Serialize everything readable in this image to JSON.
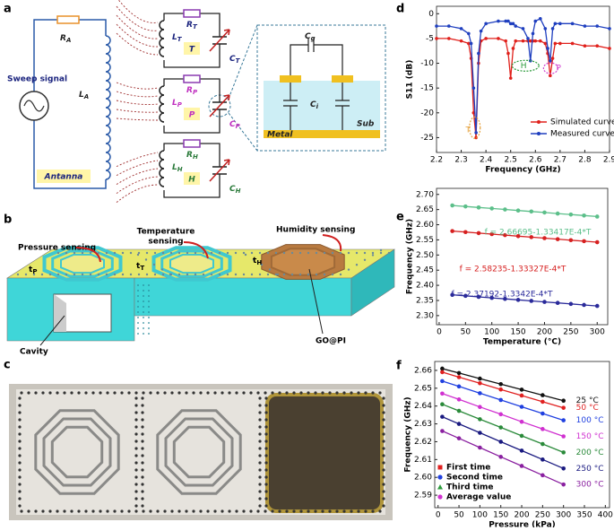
{
  "panel_labels": [
    "a",
    "b",
    "c",
    "d",
    "e",
    "f"
  ],
  "diagram_a": {
    "sweep_signal": "Sweep signal",
    "antenna": "Antanna",
    "r_a": [
      "R",
      "A"
    ],
    "l_a": [
      "L",
      "A"
    ],
    "r_t": [
      "R",
      "T"
    ],
    "l_t": [
      "L",
      "T"
    ],
    "t": "T",
    "c_t": [
      "C",
      "T"
    ],
    "r_p": [
      "R",
      "P"
    ],
    "l_p": [
      "L",
      "P"
    ],
    "p": "P",
    "c_p": [
      "C",
      "P"
    ],
    "r_h": [
      "R",
      "H"
    ],
    "l_h": [
      "L",
      "H"
    ],
    "h": "H",
    "c_h": [
      "C",
      "H"
    ],
    "c_g": [
      "C",
      "g"
    ],
    "c_i": [
      "C",
      "i"
    ],
    "sub": "Sub",
    "metal": "Metal"
  },
  "diagram_b": {
    "pressure_sensing": "Pressure sensing",
    "temperature_sensing": [
      "Temperature",
      "sensing"
    ],
    "humidity_sensing": "Humidity sensing",
    "cavity": "Cavity",
    "go_pi": "GO@PI",
    "t_p": [
      "t",
      "P"
    ],
    "t_t": [
      "t",
      "T"
    ],
    "t_h": [
      "t",
      "H"
    ]
  },
  "chart_data": [
    {
      "type": "line",
      "x_label": "Frequency (GHz)",
      "y_label": "S11 (dB)",
      "x": [
        2.2,
        2.25,
        2.3,
        2.33,
        2.34,
        2.35,
        2.36,
        2.37,
        2.38,
        2.4,
        2.45,
        2.48,
        2.49,
        2.5,
        2.51,
        2.52,
        2.55,
        2.57,
        2.58,
        2.59,
        2.6,
        2.62,
        2.64,
        2.65,
        2.66,
        2.67,
        2.68,
        2.7,
        2.75,
        2.8,
        2.85,
        2.9
      ],
      "series": [
        {
          "name": "Simulated curve",
          "color": "#e0201b",
          "values": [
            -5,
            -5,
            -5.5,
            -6,
            -9,
            -20,
            -25,
            -10,
            -5.5,
            -5,
            -5,
            -5.5,
            -8,
            -13,
            -7,
            -5.5,
            -5.5,
            -5.5,
            -5.5,
            -5.5,
            -5.5,
            -5.5,
            -6,
            -8,
            -12.5,
            -9,
            -6,
            -6,
            -6,
            -6.5,
            -6.5,
            -7
          ]
        },
        {
          "name": "Measured curve",
          "color": "#1f3fbf",
          "values": [
            -2.5,
            -2.5,
            -3,
            -4,
            -6,
            -15,
            -24,
            -8,
            -3.5,
            -2,
            -1.5,
            -1.5,
            -1.5,
            -2,
            -2,
            -2.5,
            -3,
            -5,
            -9.5,
            -4,
            -1.5,
            -1,
            -3,
            -7,
            -9.5,
            -3,
            -2,
            -2,
            -2,
            -2.5,
            -2.5,
            -3
          ]
        }
      ],
      "xlim": [
        2.2,
        2.9
      ],
      "xticks": [
        2.2,
        2.3,
        2.4,
        2.5,
        2.6,
        2.7,
        2.8,
        2.9
      ],
      "ylim": [
        -28,
        1.5
      ],
      "yticks": [
        0,
        -5,
        -10,
        -15,
        -20,
        -25
      ],
      "legend": "lower right",
      "annotations": [
        {
          "text": "T",
          "color": "#e5a03a"
        },
        {
          "text": "H",
          "color": "#2a9a3a"
        },
        {
          "text": "P",
          "color": "#d040d0"
        }
      ]
    },
    {
      "type": "line",
      "x_label": "Temperature (°C)",
      "y_label": "Frequency (GHz)",
      "x": [
        25,
        50,
        75,
        100,
        125,
        150,
        175,
        200,
        225,
        250,
        275,
        300
      ],
      "series": [
        {
          "color": "#5cbf8a",
          "values": [
            2.6636,
            2.6603,
            2.6569,
            2.6536,
            2.6503,
            2.6469,
            2.6436,
            2.6403,
            2.6369,
            2.6336,
            2.6303,
            2.6269
          ]
        },
        {
          "color": "#d62020",
          "values": [
            2.579,
            2.5757,
            2.5723,
            2.569,
            2.5657,
            2.5623,
            2.559,
            2.5557,
            2.5523,
            2.549,
            2.5457,
            2.5423
          ]
        },
        {
          "color": "#2a2a9a",
          "values": [
            2.3686,
            2.3652,
            2.3619,
            2.3586,
            2.3552,
            2.3519,
            2.3486,
            2.3452,
            2.3419,
            2.3386,
            2.3352,
            2.3319
          ]
        }
      ],
      "xlim": [
        -5,
        320
      ],
      "xticks": [
        0,
        50,
        100,
        150,
        200,
        250,
        300
      ],
      "ylim": [
        2.27,
        2.72
      ],
      "yticks": [
        {
          "value": 2.3,
          "label": "2.30"
        },
        2.35,
        {
          "value": 2.4,
          "label": "2.40"
        },
        2.45,
        {
          "value": 2.5,
          "label": "2.50"
        },
        2.55,
        {
          "value": 2.6,
          "label": "2.60"
        },
        2.65,
        {
          "value": 2.7,
          "label": "2.70"
        }
      ],
      "annotations": [
        {
          "text": "f = 2.66695-1.33417E-4*T",
          "color": "#5cbf8a"
        },
        {
          "text": "f = 2.58235-1.33327E-4*T",
          "color": "#d62020"
        },
        {
          "text": "f = 2.37192-1.3342E-4*T",
          "color": "#2a2a9a"
        }
      ]
    },
    {
      "type": "line",
      "x_label": "Pressure (kPa)",
      "y_label": "Frequency (GHz)",
      "x": [
        10,
        50,
        100,
        150,
        200,
        250,
        300
      ],
      "series": [
        {
          "name": "25 °C",
          "color": "#111111",
          "values": [
            2.661,
            2.6585,
            2.6554,
            2.6523,
            2.6492,
            2.6461,
            2.643
          ]
        },
        {
          "name": "50 °C",
          "color": "#e02020",
          "values": [
            2.659,
            2.6562,
            2.6528,
            2.6493,
            2.6459,
            2.6424,
            2.639
          ]
        },
        {
          "name": "100 °C",
          "color": "#2040e0",
          "values": [
            2.654,
            2.651,
            2.6472,
            2.6434,
            2.6396,
            2.6358,
            2.632
          ]
        },
        {
          "name": "150 °C",
          "color": "#d030d0",
          "values": [
            2.647,
            2.6437,
            2.6395,
            2.6354,
            2.6312,
            2.6271,
            2.623
          ]
        },
        {
          "name": "200 °C",
          "color": "#2a8a3a",
          "values": [
            2.641,
            2.6373,
            2.6326,
            2.628,
            2.6233,
            2.6187,
            2.614
          ]
        },
        {
          "name": "250 °C",
          "color": "#1a1a80",
          "values": [
            2.634,
            2.63,
            2.625,
            2.62,
            2.615,
            2.61,
            2.605
          ]
        },
        {
          "name": "300 °C",
          "color": "#8a20a0",
          "values": [
            2.626,
            2.6219,
            2.6167,
            2.6115,
            2.6064,
            2.6012,
            2.596
          ]
        }
      ],
      "xlim": [
        -8,
        410
      ],
      "xticks": [
        0,
        50,
        100,
        150,
        200,
        250,
        300,
        350,
        400
      ],
      "ylim": [
        2.583,
        2.665
      ],
      "yticks": [
        2.59,
        {
          "value": 2.6,
          "label": "2.60"
        },
        2.61,
        2.62,
        2.63,
        2.64,
        2.65,
        2.66
      ],
      "legend": "lower left",
      "legend_markers": [
        {
          "name": "First time",
          "color": "#e02020"
        },
        {
          "name": "Second time",
          "color": "#2040e0"
        },
        {
          "name": "Third time",
          "color": "#2a9a3a"
        },
        {
          "name": "Average value",
          "color": "#d030d0"
        }
      ]
    }
  ]
}
